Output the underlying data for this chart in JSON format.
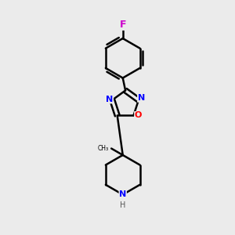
{
  "background_color": "#ebebeb",
  "bond_color": "#000000",
  "bond_width": 1.8,
  "atom_colors": {
    "F": "#cc00cc",
    "N": "#0000ff",
    "O": "#ff0000",
    "C": "#000000",
    "H": "#555555"
  },
  "xlim": [
    -1.0,
    1.2
  ],
  "ylim": [
    -1.7,
    1.8
  ]
}
